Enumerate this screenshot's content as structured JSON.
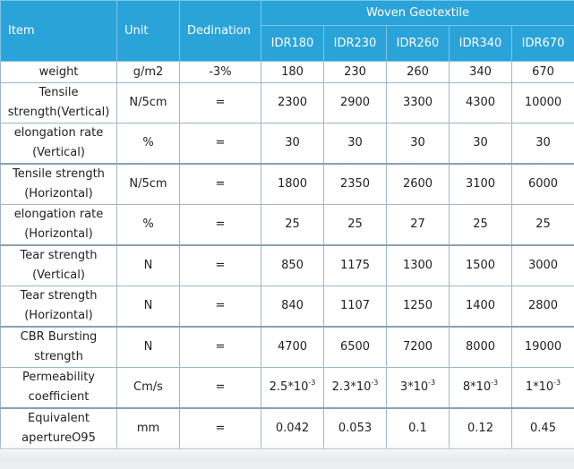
{
  "header": {
    "item": "Item",
    "unit": "Unit",
    "dedination": "Dedination",
    "group": "Woven Geotextile",
    "models": [
      "IDR180",
      "IDR230",
      "IDR260",
      "IDR340",
      "IDR670"
    ]
  },
  "rows": [
    {
      "name": "weight",
      "unit": "g/m2",
      "ded": "-3%",
      "values": [
        "180",
        "230",
        "260",
        "340",
        "670"
      ]
    },
    {
      "name": "Tensile strength(Vertical)",
      "unit": "N/5cm",
      "ded": "=",
      "values": [
        "2300",
        "2900",
        "3300",
        "4300",
        "10000"
      ]
    },
    {
      "name": "elongation rate (Vertical)",
      "unit": "%",
      "ded": "=",
      "values": [
        "30",
        "30",
        "30",
        "30",
        "30"
      ]
    },
    {
      "name": "Tensile strength (Horizontal)",
      "unit": "N/5cm",
      "ded": "=",
      "values": [
        "1800",
        "2350",
        "2600",
        "3100",
        "6000"
      ]
    },
    {
      "name": "elongation rate (Horizontal)",
      "unit": "%",
      "ded": "=",
      "values": [
        "25",
        "25",
        "27",
        "25",
        "25"
      ]
    },
    {
      "name": "Tear strength (Vertical)",
      "unit": "N",
      "ded": "=",
      "values": [
        "850",
        "1175",
        "1300",
        "1500",
        "3000"
      ]
    },
    {
      "name": "Tear strength (Horizontal)",
      "unit": "N",
      "ded": "=",
      "values": [
        "840",
        "1107",
        "1250",
        "1400",
        "2800"
      ]
    },
    {
      "name": "CBR Bursting strength",
      "unit": "N",
      "ded": "=",
      "values": [
        "4700",
        "6500",
        "7200",
        "8000",
        "19000"
      ]
    },
    {
      "name": "Permeability coefficient",
      "unit": "Cm/s",
      "ded": "=",
      "values": [
        {
          "base": "2.5*10",
          "exp": "-3"
        },
        {
          "base": "2.3*10",
          "exp": "-3"
        },
        {
          "base": "3*10",
          "exp": "-3"
        },
        {
          "base": "8*10",
          "exp": "-3"
        },
        {
          "base": "1*10",
          "exp": "-3"
        }
      ]
    },
    {
      "name": "Equivalent apertureO95",
      "unit": "mm",
      "ded": "=",
      "values": [
        "0.042",
        "0.053",
        "0.1",
        "0.12",
        "0.45"
      ]
    }
  ]
}
